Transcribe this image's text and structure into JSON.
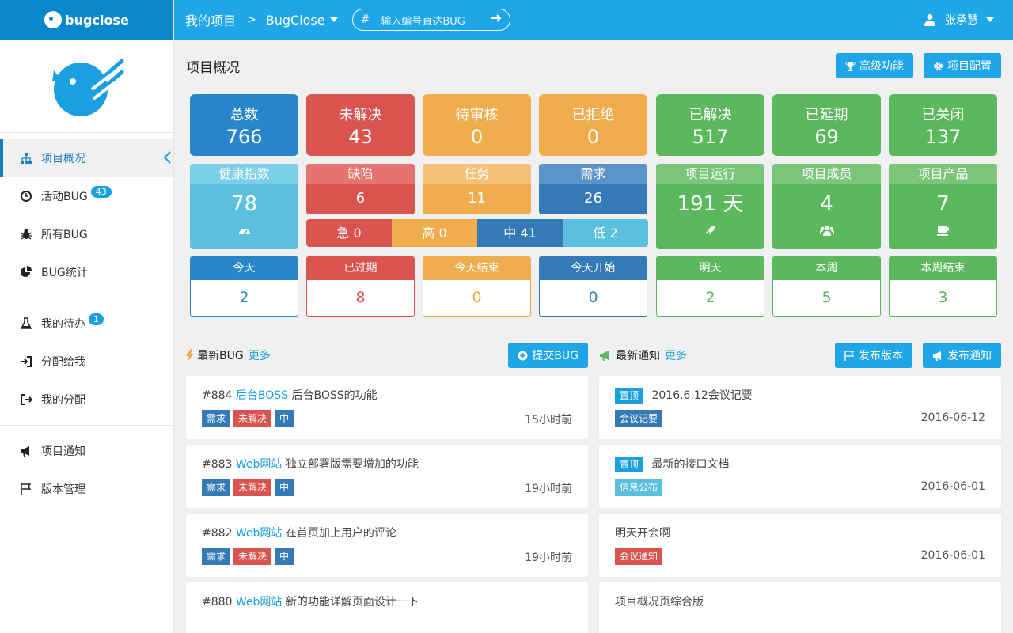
{
  "brand": {
    "name": "bugclose"
  },
  "topbar": {
    "root": "我的项目",
    "sep": ">",
    "project": "BugClose",
    "search": {
      "hash": "#",
      "placeholder": "输入编号直达BUG"
    },
    "user": "张承慧"
  },
  "sidebar": {
    "groups": [
      [
        {
          "label": "项目概况",
          "icon": "sitemap-icon",
          "active": true
        },
        {
          "label": "活动BUG",
          "icon": "clock-icon",
          "badge": "43"
        },
        {
          "label": "所有BUG",
          "icon": "bug-icon"
        },
        {
          "label": "BUG统计",
          "icon": "pie-chart-icon"
        }
      ],
      [
        {
          "label": "我的待办",
          "icon": "flask-icon",
          "badge": "1"
        },
        {
          "label": "分配给我",
          "icon": "sign-in-icon"
        },
        {
          "label": "我的分配",
          "icon": "sign-out-icon"
        }
      ],
      [
        {
          "label": "项目通知",
          "icon": "bullhorn-icon"
        },
        {
          "label": "版本管理",
          "icon": "flag-icon"
        }
      ]
    ]
  },
  "page": {
    "title": "项目概况",
    "btn_advanced": "高级功能",
    "btn_config": "项目配置"
  },
  "stats": {
    "top": [
      {
        "label": "总数",
        "value": "766",
        "color": "#2a86cb"
      },
      {
        "label": "未解决",
        "value": "43",
        "color": "#d9534f"
      },
      {
        "label": "待审核",
        "value": "0",
        "color": "#f0ad4e"
      },
      {
        "label": "已拒绝",
        "value": "0",
        "color": "#f0ad4e"
      },
      {
        "label": "已解决",
        "value": "517",
        "color": "#5cb85c"
      },
      {
        "label": "已延期",
        "value": "69",
        "color": "#5cb85c"
      },
      {
        "label": "已关闭",
        "value": "137",
        "color": "#5cb85c"
      }
    ],
    "health": {
      "label": "健康指数",
      "value": "78"
    },
    "types": [
      {
        "label": "缺陷",
        "value": "6"
      },
      {
        "label": "任务",
        "value": "11"
      },
      {
        "label": "需求",
        "value": "26"
      }
    ],
    "priority": [
      {
        "label": "急 0"
      },
      {
        "label": "高 0"
      },
      {
        "label": "中 41"
      },
      {
        "label": "低 2"
      }
    ],
    "project": [
      {
        "label": "项目运行",
        "value": "191 天",
        "icon": "rocket-icon"
      },
      {
        "label": "项目成员",
        "value": "4",
        "icon": "users-icon"
      },
      {
        "label": "项目产品",
        "value": "7",
        "icon": "coffee-icon"
      }
    ],
    "periods": [
      {
        "label": "今天",
        "value": "2"
      },
      {
        "label": "已过期",
        "value": "8"
      },
      {
        "label": "今天结束",
        "value": "0"
      },
      {
        "label": "今天开始",
        "value": "0"
      },
      {
        "label": "明天",
        "value": "2"
      },
      {
        "label": "本周",
        "value": "5"
      },
      {
        "label": "本周结束",
        "value": "3"
      }
    ]
  },
  "bugs": {
    "title": "最新BUG",
    "more": "更多",
    "submit": "提交BUG",
    "items": [
      {
        "id": "#884",
        "module": "后台BOSS",
        "title": "后台BOSS的功能",
        "tags": [
          "需求",
          "未解决",
          "中"
        ],
        "time": "15小时前"
      },
      {
        "id": "#883",
        "module": "Web网站",
        "title": "独立部署版需要增加的功能",
        "tags": [
          "需求",
          "未解决",
          "中"
        ],
        "time": "19小时前"
      },
      {
        "id": "#882",
        "module": "Web网站",
        "title": "在首页加上用户的评论",
        "tags": [
          "需求",
          "未解决",
          "中"
        ],
        "time": "19小时前"
      },
      {
        "id": "#880",
        "module": "Web网站",
        "title": "新的功能详解页面设计一下",
        "tags": [],
        "time": ""
      }
    ]
  },
  "notices": {
    "title": "最新通知",
    "more": "更多",
    "btn_release": "发布版本",
    "btn_notice": "发布通知",
    "items": [
      {
        "pin": "置顶",
        "title": "2016.6.12会议记要",
        "tag": "会议记要",
        "tag_color": "#337ab7",
        "date": "2016-06-12"
      },
      {
        "pin": "置顶",
        "title": "最新的接口文档",
        "tag": "信息公布",
        "tag_color": "#5bc0de",
        "date": "2016-06-01"
      },
      {
        "pin": "",
        "title": "明天开会啊",
        "tag": "会议通知",
        "tag_color": "#d9534f",
        "date": "2016-06-01"
      },
      {
        "pin": "",
        "title": "项目概况页综合版",
        "tag": "",
        "tag_color": "",
        "date": ""
      }
    ]
  }
}
